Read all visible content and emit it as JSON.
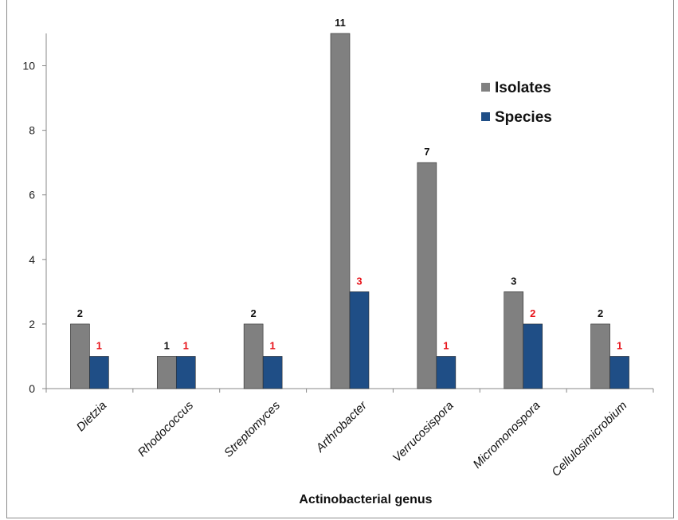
{
  "chart_data": {
    "type": "bar",
    "title": "",
    "xlabel": "Actinobacterial genus",
    "ylabel": "",
    "ylim": [
      0,
      11
    ],
    "yticks": [
      0,
      2,
      4,
      6,
      8,
      10
    ],
    "grid": false,
    "legend_position": "top-right",
    "categories": [
      "Dietzia",
      "Rhodococcus",
      "Streptomyces",
      "Arthrobacter",
      "Verrucosispora",
      "Micromonospora",
      "Cellulosimicrobium"
    ],
    "series": [
      {
        "name": "Isolates",
        "values": [
          2,
          1,
          2,
          11,
          7,
          3,
          2
        ],
        "color": "#808080",
        "label_color": "#111111"
      },
      {
        "name": "Species",
        "values": [
          1,
          1,
          1,
          3,
          1,
          2,
          1
        ],
        "color": "#1f4e86",
        "label_color": "#e8141b"
      }
    ]
  }
}
